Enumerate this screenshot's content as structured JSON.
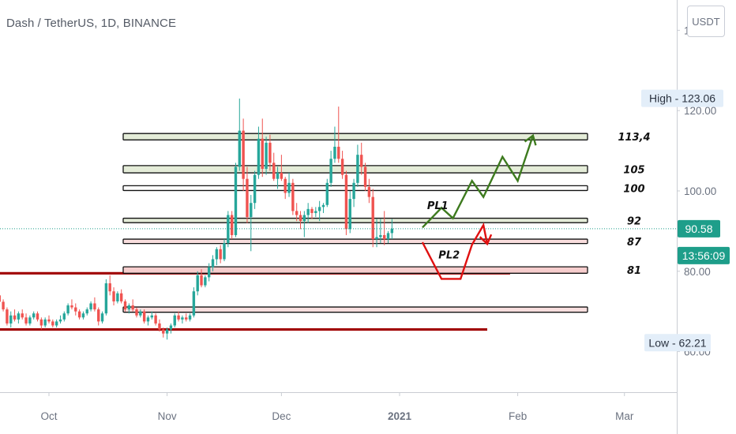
{
  "header": {
    "title": "Dash / TetherUS, 1D, BINANCE",
    "currency_button": "USDT"
  },
  "colors": {
    "up": "#26a69a",
    "down": "#ef5350",
    "bullish_path": "#3d7a1e",
    "bearish_path": "#e01010",
    "support_line": "#a00000",
    "current_tag": "#1e9e8a",
    "info_tag": "#e3eef9"
  },
  "chart_data": {
    "type": "candlestick",
    "title": "Dash / TetherUS, 1D, BINANCE",
    "ylim": [
      44,
      144
    ],
    "y_ticks": [
      {
        "value": 140,
        "label": "140.00"
      },
      {
        "value": 120,
        "label": "120.00"
      },
      {
        "value": 100,
        "label": "100.00"
      },
      {
        "value": 80,
        "label": "80.00"
      },
      {
        "value": 60,
        "label": "60.00"
      }
    ],
    "x_ticks": [
      {
        "day": 0,
        "label": "Oct"
      },
      {
        "day": 31,
        "label": "Nov"
      },
      {
        "day": 61,
        "label": "Dec"
      },
      {
        "day": 92,
        "label": "2021"
      },
      {
        "day": 123,
        "label": "Feb"
      },
      {
        "day": 151,
        "label": "Mar"
      }
    ],
    "current_price": {
      "value": 90.58,
      "label": "90.58",
      "countdown": "13:56:09"
    },
    "high": {
      "value": 123.06,
      "label": "High - 123.06"
    },
    "low": {
      "value": 62.21,
      "label": "Low - 62.21"
    },
    "zones": [
      {
        "low": 112.7,
        "high": 114.3,
        "fill": "#e4ecd8",
        "label": "113,4"
      },
      {
        "low": 104.5,
        "high": 106.3,
        "fill": "#e4ecd8",
        "label": "105"
      },
      {
        "low": 100.1,
        "high": 101.3,
        "fill": "#ffffff",
        "label": "100"
      },
      {
        "low": 92.1,
        "high": 93.2,
        "fill": "#e4ecd8",
        "label": "92"
      },
      {
        "low": 86.9,
        "high": 88.0,
        "fill": "#f9dede",
        "label": "87"
      },
      {
        "low": 79.5,
        "high": 81.1,
        "fill": "#f6cdcd",
        "label": "81"
      },
      {
        "low": 69.8,
        "high": 71.1,
        "fill": "#f9dede",
        "label": ""
      }
    ],
    "support_lines": [
      {
        "day_start": -13,
        "day_end": 121,
        "value": 79.5
      },
      {
        "day_start": -13,
        "day_end": 115,
        "value": 65.5
      }
    ],
    "projections": [
      {
        "name": "PL1",
        "label_day": 102,
        "label_value": 95.5,
        "points": [
          [
            98,
            90.9
          ],
          [
            103,
            95.8
          ],
          [
            106,
            93.2
          ],
          [
            111,
            102.5
          ],
          [
            114,
            98.5
          ],
          [
            119,
            108.5
          ],
          [
            123,
            102.5
          ],
          [
            127,
            113.8
          ]
        ]
      },
      {
        "name": "PL2",
        "label_day": 105,
        "label_value": 83.2,
        "points": [
          [
            98,
            87.2
          ],
          [
            103,
            78.1
          ],
          [
            108,
            78.1
          ],
          [
            111,
            86.6
          ],
          [
            114,
            91.5
          ],
          [
            115,
            86.8
          ]
        ]
      }
    ],
    "candles_ohlc": [
      [
        74.0,
        74.5,
        72.0,
        72.4
      ],
      [
        72.4,
        73.0,
        70.0,
        70.5
      ],
      [
        70.5,
        71.0,
        66.5,
        67.0
      ],
      [
        67.0,
        70.0,
        66.0,
        69.0
      ],
      [
        69.0,
        70.5,
        67.5,
        68.0
      ],
      [
        68.0,
        70.0,
        67.0,
        69.5
      ],
      [
        69.5,
        70.5,
        68.0,
        68.5
      ],
      [
        68.5,
        69.5,
        66.5,
        67.0
      ],
      [
        67.0,
        69.0,
        66.5,
        68.5
      ],
      [
        68.5,
        70.0,
        68.0,
        69.5
      ],
      [
        69.5,
        70.0,
        67.5,
        68.0
      ],
      [
        68.0,
        68.5,
        65.5,
        66.5
      ],
      [
        66.5,
        68.5,
        66.0,
        68.0
      ],
      [
        68.0,
        69.0,
        67.0,
        67.5
      ],
      [
        67.5,
        68.0,
        66.0,
        66.5
      ],
      [
        66.5,
        68.0,
        66.0,
        67.5
      ],
      [
        67.5,
        69.0,
        67.0,
        68.0
      ],
      [
        68.0,
        70.0,
        67.5,
        69.5
      ],
      [
        69.5,
        72.0,
        69.0,
        71.5
      ],
      [
        71.5,
        73.0,
        70.5,
        71.0
      ],
      [
        71.0,
        72.0,
        69.0,
        70.0
      ],
      [
        70.0,
        70.5,
        68.0,
        68.5
      ],
      [
        68.5,
        70.0,
        68.0,
        69.5
      ],
      [
        69.5,
        71.0,
        69.0,
        70.5
      ],
      [
        70.5,
        72.5,
        70.0,
        72.0
      ],
      [
        72.0,
        73.5,
        70.0,
        70.5
      ],
      [
        70.5,
        71.0,
        66.5,
        67.5
      ],
      [
        67.5,
        70.0,
        67.0,
        69.5
      ],
      [
        69.5,
        78.0,
        69.0,
        77.0
      ],
      [
        77.0,
        79.0,
        74.0,
        75.0
      ],
      [
        75.0,
        76.0,
        71.5,
        72.5
      ],
      [
        72.5,
        75.0,
        72.0,
        74.5
      ],
      [
        74.5,
        75.5,
        72.0,
        72.5
      ],
      [
        72.5,
        73.0,
        70.0,
        70.5
      ],
      [
        70.5,
        72.0,
        69.5,
        71.5
      ],
      [
        71.5,
        73.0,
        70.0,
        70.5
      ],
      [
        70.5,
        71.0,
        68.5,
        69.0
      ],
      [
        69.0,
        70.5,
        68.5,
        70.0
      ],
      [
        70.0,
        70.5,
        67.0,
        67.5
      ],
      [
        67.5,
        69.0,
        66.5,
        68.5
      ],
      [
        68.5,
        70.0,
        68.0,
        69.0
      ],
      [
        69.0,
        69.5,
        66.5,
        67.0
      ],
      [
        67.0,
        68.0,
        65.0,
        65.5
      ],
      [
        65.5,
        66.0,
        63.5,
        64.5
      ],
      [
        64.5,
        66.0,
        63.0,
        65.5
      ],
      [
        65.5,
        67.0,
        64.5,
        66.5
      ],
      [
        66.5,
        69.5,
        66.0,
        69.0
      ],
      [
        69.0,
        70.0,
        67.5,
        68.0
      ],
      [
        68.0,
        69.0,
        67.0,
        68.5
      ],
      [
        68.5,
        69.5,
        67.5,
        68.0
      ],
      [
        68.0,
        69.5,
        67.5,
        69.0
      ],
      [
        69.0,
        76.0,
        68.5,
        75.0
      ],
      [
        75.0,
        80.0,
        74.0,
        79.0
      ],
      [
        79.0,
        80.5,
        76.0,
        76.5
      ],
      [
        76.5,
        79.0,
        76.0,
        78.5
      ],
      [
        78.5,
        82.0,
        77.5,
        81.0
      ],
      [
        81.0,
        84.0,
        80.0,
        83.0
      ],
      [
        83.0,
        86.0,
        81.5,
        85.5
      ],
      [
        85.5,
        86.5,
        82.0,
        83.0
      ],
      [
        83.0,
        88.0,
        82.5,
        87.0
      ],
      [
        87.0,
        95.0,
        86.0,
        94.0
      ],
      [
        94.0,
        95.0,
        88.0,
        89.0
      ],
      [
        89.0,
        107.0,
        88.5,
        106.0
      ],
      [
        106.0,
        123.0,
        105.0,
        115.0
      ],
      [
        115.0,
        118.0,
        100.0,
        103.0
      ],
      [
        103.0,
        106.0,
        92.0,
        93.5
      ],
      [
        93.5,
        99.0,
        85.0,
        97.0
      ],
      [
        97.0,
        105.0,
        95.5,
        104.0
      ],
      [
        104.0,
        116.0,
        103.0,
        113.0
      ],
      [
        113.0,
        118.0,
        103.5,
        105.5
      ],
      [
        105.5,
        113.5,
        104.0,
        112.0
      ],
      [
        112.0,
        114.0,
        105.0,
        107.0
      ],
      [
        107.0,
        109.5,
        102.5,
        103.0
      ],
      [
        103.0,
        106.0,
        100.5,
        104.5
      ],
      [
        104.5,
        109.0,
        102.5,
        103.0
      ],
      [
        103.0,
        103.5,
        98.0,
        99.5
      ],
      [
        99.5,
        104.5,
        98.5,
        102.0
      ],
      [
        102.0,
        103.0,
        94.0,
        95.0
      ],
      [
        95.0,
        97.0,
        92.5,
        94.0
      ],
      [
        94.0,
        95.0,
        90.5,
        92.5
      ],
      [
        92.5,
        95.0,
        88.5,
        94.0
      ],
      [
        94.0,
        97.0,
        92.0,
        95.5
      ],
      [
        95.5,
        96.0,
        93.0,
        94.5
      ],
      [
        94.5,
        96.0,
        93.5,
        95.0
      ],
      [
        95.0,
        97.5,
        92.5,
        96.0
      ],
      [
        96.0,
        97.0,
        94.5,
        96.5
      ],
      [
        96.5,
        103.0,
        96.0,
        102.0
      ],
      [
        102.0,
        110.0,
        101.0,
        108.0
      ],
      [
        108.0,
        116.0,
        107.0,
        111.0
      ],
      [
        111.0,
        121.0,
        107.0,
        108.0
      ],
      [
        108.0,
        110.0,
        103.0,
        104.0
      ],
      [
        104.0,
        105.0,
        89.0,
        90.5
      ],
      [
        90.5,
        100.0,
        89.5,
        98.0
      ],
      [
        98.0,
        103.0,
        96.0,
        102.0
      ],
      [
        102.0,
        111.5,
        101.0,
        109.0
      ],
      [
        109.0,
        112.0,
        104.0,
        106.0
      ],
      [
        106.0,
        107.0,
        100.0,
        101.0
      ],
      [
        101.0,
        103.0,
        97.0,
        98.5
      ],
      [
        98.5,
        100.5,
        86.0,
        88.0
      ],
      [
        88.0,
        93.0,
        86.0,
        88.5
      ],
      [
        88.5,
        93.0,
        87.0,
        89.0
      ],
      [
        89.0,
        95.0,
        86.5,
        88.0
      ],
      [
        88.0,
        90.0,
        87.0,
        89.5
      ],
      [
        89.5,
        93.0,
        88.0,
        90.6
      ]
    ]
  }
}
